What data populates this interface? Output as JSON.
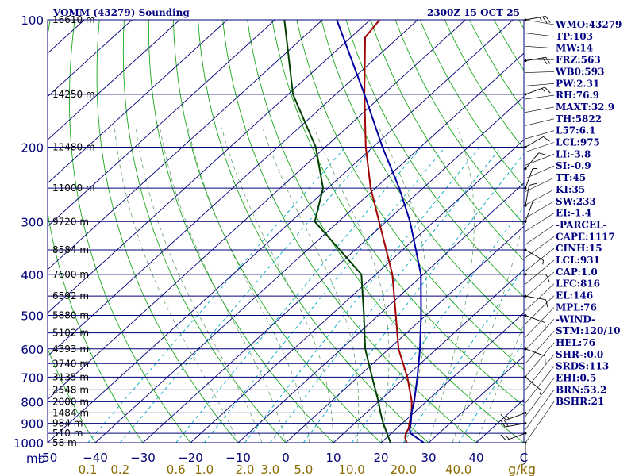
{
  "header": {
    "station": "VOMM (43279) Sounding",
    "time": "2300Z 15 OCT 25"
  },
  "chart_data": {
    "type": "skew-t",
    "title": "VOMM (43279) Sounding",
    "valid_time": "2300Z 15 OCT 25",
    "pressure_range_hpa": [
      1000,
      100
    ],
    "temperature_range_c": [
      -50,
      50
    ],
    "pressure_unit_label": "mb",
    "mixing_ratio_unit_label": "g/kg",
    "pressure_levels": [
      {
        "p": 100,
        "label": "100"
      },
      {
        "p": 200,
        "label": "200"
      },
      {
        "p": 300,
        "label": "300"
      },
      {
        "p": 400,
        "label": "400"
      },
      {
        "p": 500,
        "label": "500"
      },
      {
        "p": 600,
        "label": "600"
      },
      {
        "p": 700,
        "label": "700"
      },
      {
        "p": 800,
        "label": "800"
      },
      {
        "p": 900,
        "label": "900"
      },
      {
        "p": 1000,
        "label": "1000"
      }
    ],
    "height_levels": [
      {
        "p": 100,
        "label": "16610 m"
      },
      {
        "p": 150,
        "label": "14250 m"
      },
      {
        "p": 200,
        "label": "12480 m"
      },
      {
        "p": 250,
        "label": "11000 m"
      },
      {
        "p": 300,
        "label": "9720 m"
      },
      {
        "p": 350,
        "label": "8584 m"
      },
      {
        "p": 400,
        "label": "7600 m"
      },
      {
        "p": 450,
        "label": "6592 m"
      },
      {
        "p": 500,
        "label": "5880 m"
      },
      {
        "p": 550,
        "label": "5102 m"
      },
      {
        "p": 600,
        "label": "4393 m"
      },
      {
        "p": 650,
        "label": "3740 m"
      },
      {
        "p": 700,
        "label": "3135 m"
      },
      {
        "p": 750,
        "label": "2548 m"
      },
      {
        "p": 800,
        "label": "2000 m"
      },
      {
        "p": 850,
        "label": "1484 m"
      },
      {
        "p": 900,
        "label": "984 m"
      },
      {
        "p": 950,
        "label": "510 m"
      },
      {
        "p": 1000,
        "label": "58 m"
      }
    ],
    "temperature_ticks": [
      {
        "t": -50,
        "label": "-50"
      },
      {
        "t": -40,
        "label": "−40"
      },
      {
        "t": -30,
        "label": "−30"
      },
      {
        "t": -20,
        "label": "−20"
      },
      {
        "t": -10,
        "label": "−10"
      },
      {
        "t": 0,
        "label": "0"
      },
      {
        "t": 10,
        "label": "10"
      },
      {
        "t": 20,
        "label": "20"
      },
      {
        "t": 30,
        "label": "30"
      },
      {
        "t": 40,
        "label": "40"
      },
      {
        "t": 50,
        "label": "C"
      }
    ],
    "mixing_ratio_ticks": [
      {
        "w": 0.1,
        "label": "0.1"
      },
      {
        "w": 0.2,
        "label": "0.2"
      },
      {
        "w": 0.6,
        "label": "0.6"
      },
      {
        "w": 1.0,
        "label": "1.0"
      },
      {
        "w": 2.0,
        "label": "2.0"
      },
      {
        "w": 3.0,
        "label": "3.0"
      },
      {
        "w": 5.0,
        "label": "5.0"
      },
      {
        "w": 10.0,
        "label": "10.0"
      },
      {
        "w": 20.0,
        "label": "20.0"
      },
      {
        "w": 40.0,
        "label": "40.0"
      }
    ],
    "series": [
      {
        "name": "Temperature",
        "color": "#a00000",
        "points": [
          {
            "p": 1000,
            "t": 25.4
          },
          {
            "p": 975,
            "t": 24.0
          },
          {
            "p": 950,
            "t": 23.0
          },
          {
            "p": 925,
            "t": 22.5
          },
          {
            "p": 900,
            "t": 21.5
          },
          {
            "p": 850,
            "t": 19.5
          },
          {
            "p": 800,
            "t": 17.0
          },
          {
            "p": 700,
            "t": 10.4
          },
          {
            "p": 600,
            "t": 2.0
          },
          {
            "p": 500,
            "t": -6.3
          },
          {
            "p": 400,
            "t": -16.5
          },
          {
            "p": 300,
            "t": -31.5
          },
          {
            "p": 250,
            "t": -41.0
          },
          {
            "p": 200,
            "t": -51.5
          },
          {
            "p": 150,
            "t": -64.0
          },
          {
            "p": 110,
            "t": -77.0
          },
          {
            "p": 100,
            "t": -78.0
          }
        ]
      },
      {
        "name": "Dewpoint",
        "color": "#004000",
        "points": [
          {
            "p": 1000,
            "t": 22.0
          },
          {
            "p": 900,
            "t": 16.0
          },
          {
            "p": 850,
            "t": 13.0
          },
          {
            "p": 800,
            "t": 10.0
          },
          {
            "p": 700,
            "t": 3.0
          },
          {
            "p": 600,
            "t": -5.0
          },
          {
            "p": 500,
            "t": -13.0
          },
          {
            "p": 400,
            "t": -23.0
          },
          {
            "p": 300,
            "t": -45.0
          },
          {
            "p": 250,
            "t": -51.0
          },
          {
            "p": 200,
            "t": -62.0
          },
          {
            "p": 150,
            "t": -79.0
          },
          {
            "p": 100,
            "t": -98.0
          }
        ]
      },
      {
        "name": "Parcel path",
        "color": "#0000a0",
        "points": [
          {
            "p": 1000,
            "t": 29.0
          },
          {
            "p": 975,
            "t": 26.5
          },
          {
            "p": 950,
            "t": 24.0
          },
          {
            "p": 931,
            "t": 23.0
          },
          {
            "p": 900,
            "t": 21.8
          },
          {
            "p": 850,
            "t": 19.5
          },
          {
            "p": 800,
            "t": 17.5
          },
          {
            "p": 700,
            "t": 12.5
          },
          {
            "p": 600,
            "t": 6.5
          },
          {
            "p": 500,
            "t": -1.0
          },
          {
            "p": 400,
            "t": -10.5
          },
          {
            "p": 300,
            "t": -25.0
          },
          {
            "p": 250,
            "t": -35.0
          },
          {
            "p": 200,
            "t": -48.0
          },
          {
            "p": 150,
            "t": -64.0
          },
          {
            "p": 100,
            "t": -87.0
          }
        ]
      }
    ],
    "wind_barbs": [
      {
        "p": 100,
        "dir": 80,
        "kt": 25
      },
      {
        "p": 125,
        "dir": 80,
        "kt": 20
      },
      {
        "p": 150,
        "dir": 70,
        "kt": 15
      },
      {
        "p": 200,
        "dir": 60,
        "kt": 10
      },
      {
        "p": 225,
        "dir": 40,
        "kt": 10
      },
      {
        "p": 250,
        "dir": 20,
        "kt": 5
      },
      {
        "p": 275,
        "dir": 10,
        "kt": 10
      },
      {
        "p": 300,
        "dir": 20,
        "kt": 10
      },
      {
        "p": 350,
        "dir": 120,
        "kt": 5
      },
      {
        "p": 400,
        "dir": 90,
        "kt": 10
      },
      {
        "p": 450,
        "dir": 100,
        "kt": 10
      },
      {
        "p": 500,
        "dir": 110,
        "kt": 10
      },
      {
        "p": 600,
        "dir": 110,
        "kt": 10
      },
      {
        "p": 700,
        "dir": 130,
        "kt": 5
      },
      {
        "p": 850,
        "dir": 250,
        "kt": 15
      },
      {
        "p": 900,
        "dir": 260,
        "kt": 20
      },
      {
        "p": 950,
        "dir": 250,
        "kt": 15
      },
      {
        "p": 1000,
        "dir": 180,
        "kt": 5
      }
    ],
    "indices": [
      "WMO:43279",
      "TP:103",
      "MW:14",
      "FRZ:563",
      "WB0:593",
      "PW:2.31",
      "RH:76.9",
      "MAXT:32.9",
      "TH:5822",
      "L57:6.1",
      "LCL:975",
      "LI:-3.8",
      "SI:-0.9",
      "TT:45",
      "KI:35",
      "SW:233",
      "EI:-1.4",
      "-PARCEL-",
      "CAPE:1117",
      "CINH:15",
      "LCL:931",
      "CAP:1.0",
      "LFC:816",
      "EL:146",
      "MPL:76",
      "-WIND-",
      "STM:120/10",
      "HEL:76",
      "SHR-:0.0",
      "SRDS:113",
      "EHI:0.5",
      "BRN:53.2",
      "BSHR:21"
    ]
  },
  "colors": {
    "isobar": "#00007a",
    "isotherm": "#00007a",
    "dry_adiabat": "#00a000",
    "moist_adiabat": "#6aa06a",
    "mixing_ratio": "#00a8c0",
    "title_text": "#000080",
    "mixing_label": "#8b6b00",
    "temperature": "#a00000",
    "dewpoint": "#004000",
    "parcel": "#0000a0"
  }
}
